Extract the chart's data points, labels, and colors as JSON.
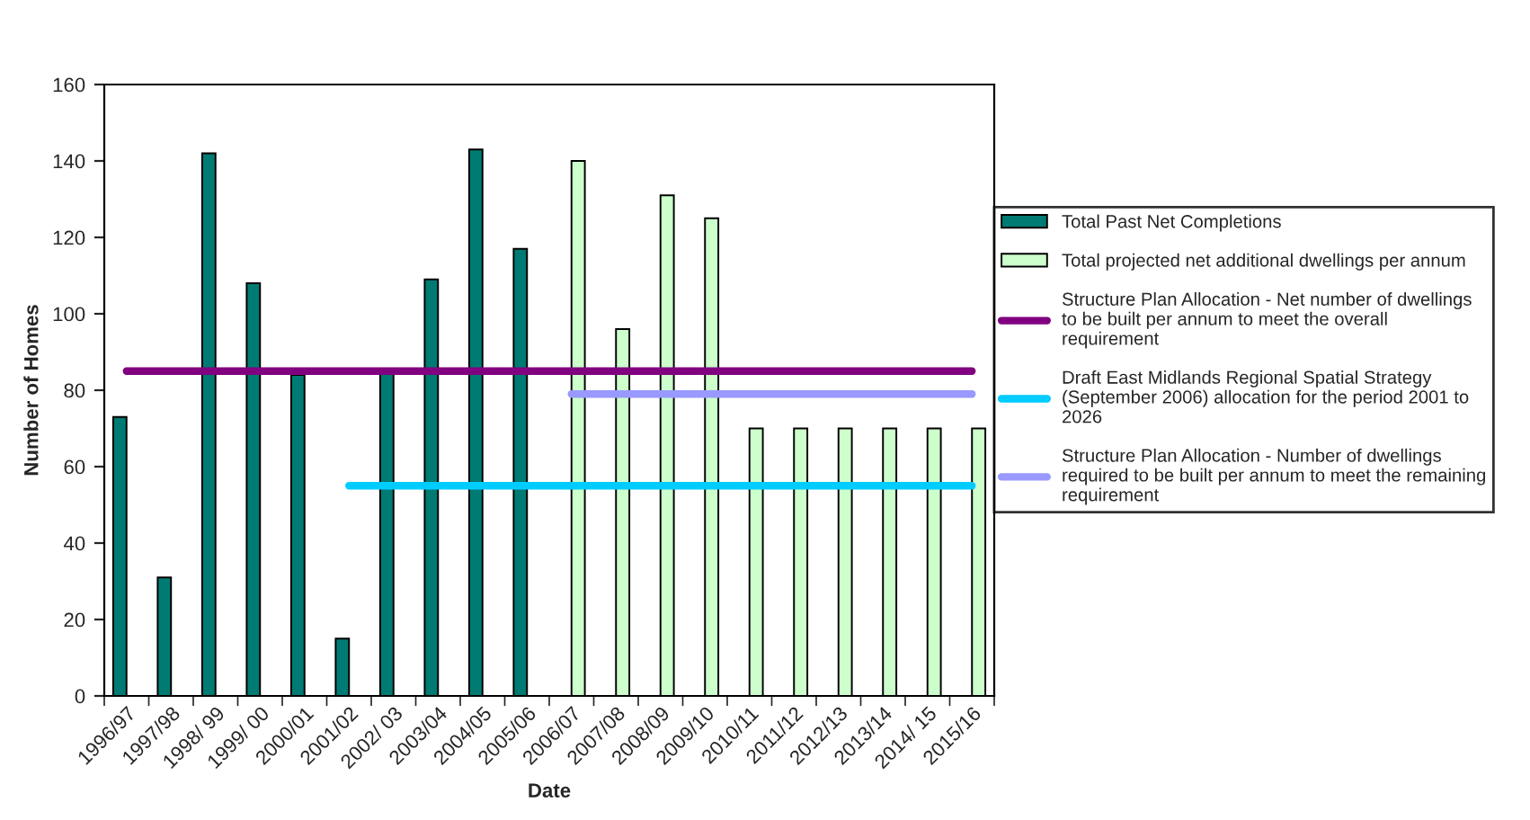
{
  "chart_data": {
    "type": "bar",
    "xlabel": "Date",
    "ylabel": "Number of Homes",
    "categories": [
      "1996/97",
      "1997/98",
      "1998/ 99",
      "1999/ 00",
      "2000/01",
      "2001/02",
      "2002/ 03",
      "2003/04",
      "2004/05",
      "2005/06",
      "2006/07",
      "2007/08",
      "2008/09",
      "2009/10",
      "2010/11",
      "2011/12",
      "2012/13",
      "2013/14",
      "2014/ 15",
      "2015/16"
    ],
    "series": [
      {
        "name": "Total Past Net Completions",
        "color": "#007b73",
        "values": [
          73,
          31,
          142,
          108,
          84,
          15,
          85,
          109,
          143,
          117,
          null,
          null,
          null,
          null,
          null,
          null,
          null,
          null,
          null,
          null
        ]
      },
      {
        "name": "Total projected net additional dwellings per annum",
        "color": "#ccffcc",
        "values": [
          null,
          null,
          null,
          null,
          null,
          null,
          null,
          null,
          null,
          null,
          140,
          96,
          131,
          125,
          70,
          70,
          70,
          70,
          70,
          70
        ]
      },
      {
        "name": "Structure Plan Allocation - Net number of dwellings to be built per annum to meet the overall requirement",
        "type": "line",
        "color": "#800080",
        "values": [
          85,
          85,
          85,
          85,
          85,
          85,
          85,
          85,
          85,
          85,
          85,
          85,
          85,
          85,
          85,
          85,
          85,
          85,
          85,
          85
        ]
      },
      {
        "name": "Draft East Midlands Regional Spatial Strategy (September 2006) allocation for the period 2001 to 2026",
        "type": "line",
        "color": "#00ccff",
        "values": [
          null,
          null,
          null,
          null,
          null,
          55,
          55,
          55,
          55,
          55,
          55,
          55,
          55,
          55,
          55,
          55,
          55,
          55,
          55,
          55
        ]
      },
      {
        "name": "Structure Plan Allocation - Number of dwellings required to be built per annum to meet the remaining requirement",
        "type": "line",
        "color": "#9999ff",
        "values": [
          null,
          null,
          null,
          null,
          null,
          null,
          null,
          null,
          null,
          null,
          79,
          79,
          79,
          79,
          79,
          79,
          79,
          79,
          79,
          79
        ]
      }
    ],
    "ylim": [
      0,
      160
    ],
    "yticks": [
      0,
      20,
      40,
      60,
      80,
      100,
      120,
      140,
      160
    ],
    "grid": false,
    "legend": "right"
  }
}
